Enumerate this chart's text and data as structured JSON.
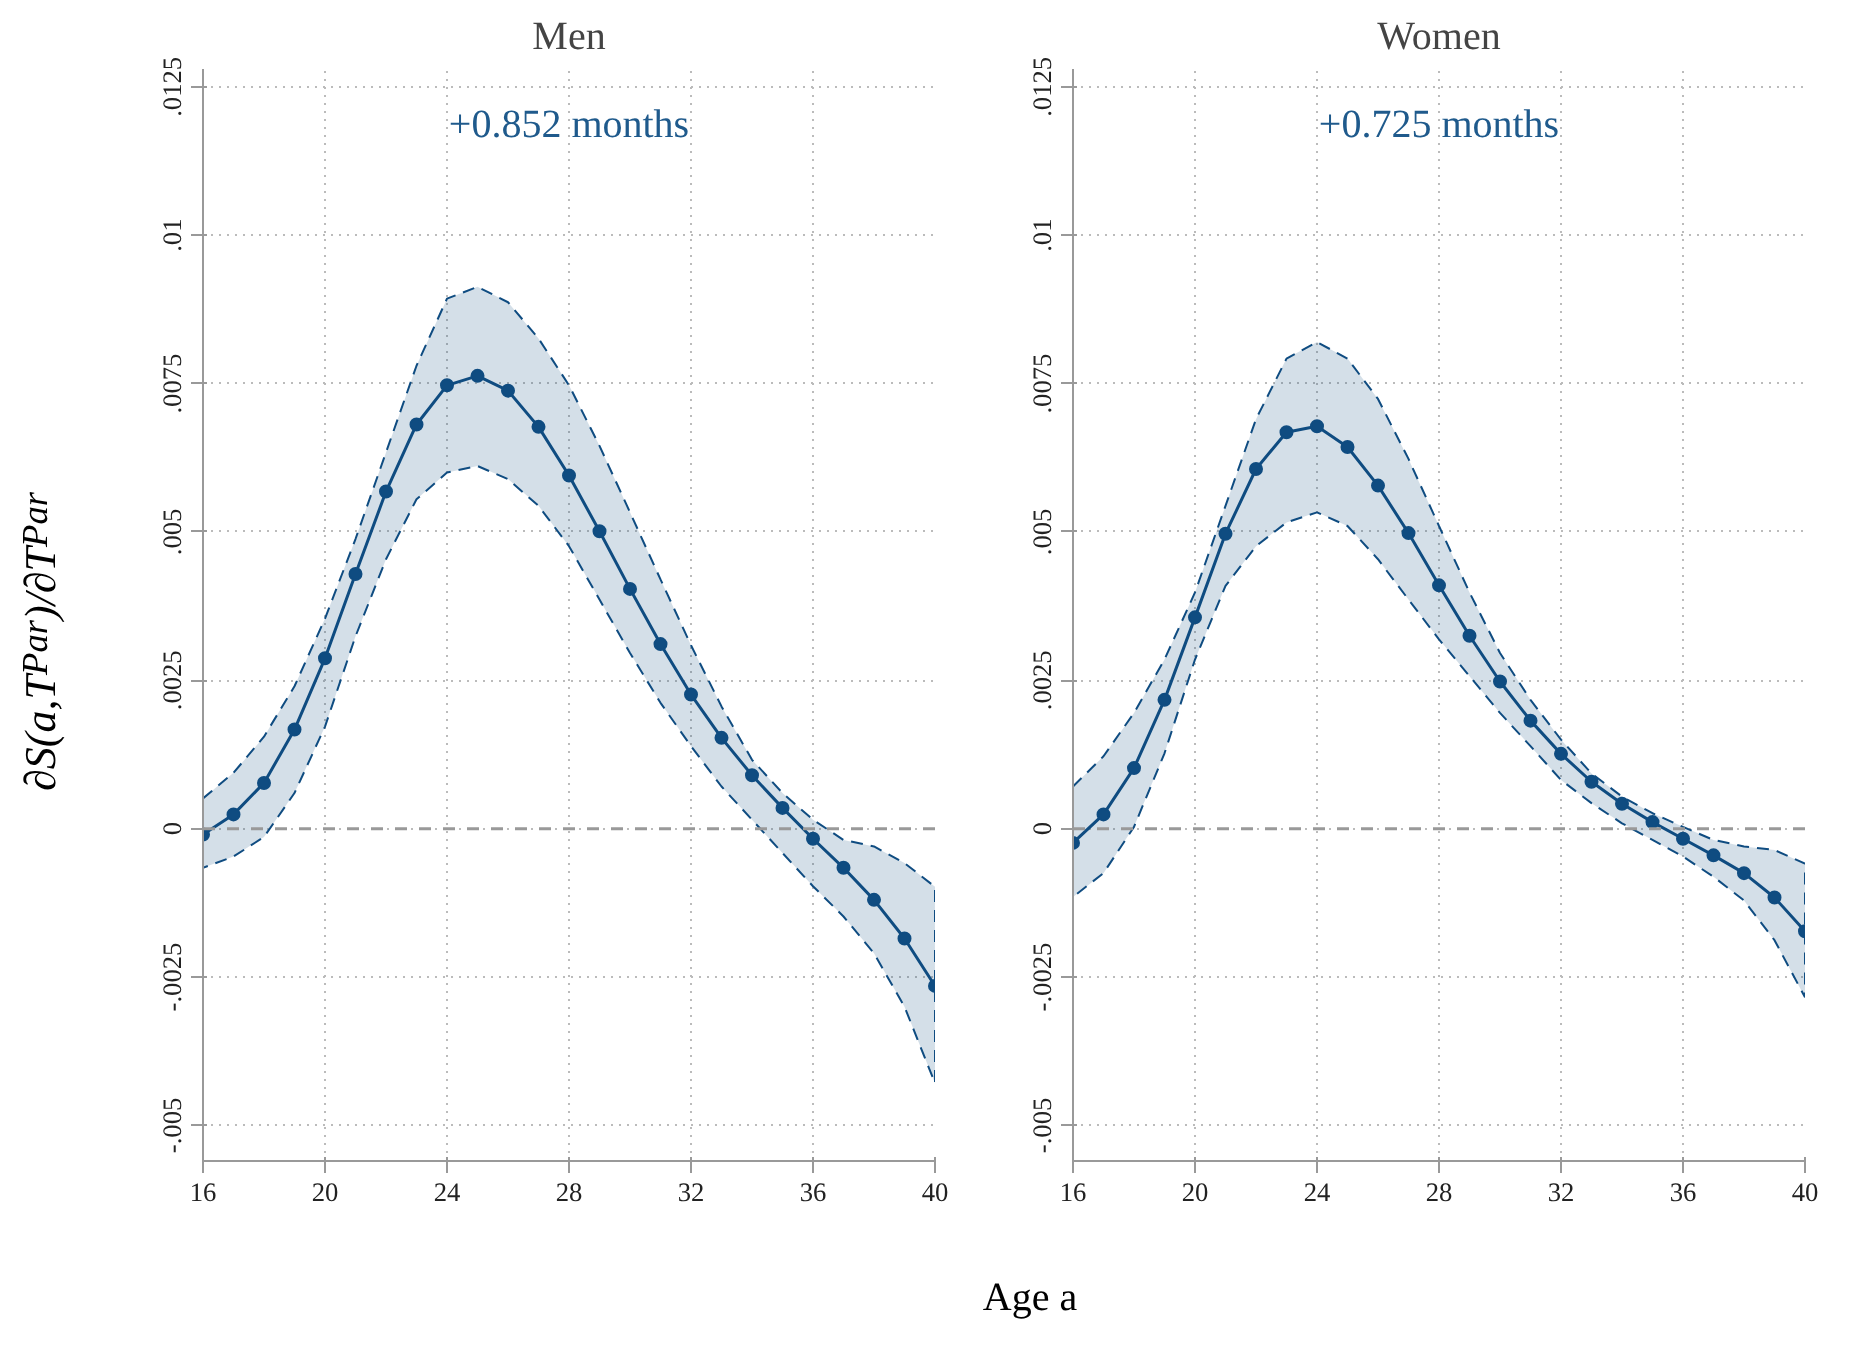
{
  "chart_data": [
    {
      "type": "line",
      "title": "Men",
      "ylabel": "∂S(a,T$_{Par}$)/∂T$_{Par}$",
      "xlabel": "Age a",
      "x": [
        16,
        17,
        18,
        19,
        20,
        21,
        22,
        23,
        24,
        25,
        26,
        27,
        28,
        29,
        30,
        31,
        32,
        33,
        34,
        35,
        36,
        37,
        38,
        39,
        40
      ],
      "series": [
        {
          "color": "#0f4c81",
          "values": [
            -0.0001,
            0.00024,
            0.00077,
            0.00167,
            0.00287,
            0.00429,
            0.00568,
            0.00681,
            0.00747,
            0.00763,
            0.00738,
            0.00677,
            0.00595,
            0.00501,
            0.00404,
            0.00311,
            0.00226,
            0.00153,
            0.0009,
            0.00035,
            -0.00017,
            -0.00066,
            -0.0012,
            -0.00185,
            -0.00265
          ],
          "upper": [
            0.00051,
            0.00094,
            0.00155,
            0.0024,
            0.00354,
            0.00488,
            0.00634,
            0.0078,
            0.00893,
            0.00913,
            0.00887,
            0.00826,
            0.00747,
            0.00645,
            0.00533,
            0.0042,
            0.00309,
            0.00206,
            0.00116,
            0.0006,
            0.00015,
            -0.00019,
            -0.0003,
            -0.00058,
            -0.00098
          ],
          "lower": [
            -0.00066,
            -0.00047,
            -0.00014,
            0.0006,
            0.00172,
            0.00324,
            0.00454,
            0.00555,
            0.006,
            0.00611,
            0.00589,
            0.00544,
            0.00476,
            0.00386,
            0.00296,
            0.00212,
            0.00139,
            0.00071,
            0.00015,
            -0.00041,
            -0.00097,
            -0.00148,
            -0.0021,
            -0.003,
            -0.00429
          ]
        }
      ],
      "annotations": [
        "+0.852 months"
      ],
      "xlim": [
        16,
        40
      ],
      "xticks": [
        16,
        20,
        24,
        28,
        32,
        36,
        40
      ],
      "ylim": [
        -0.0056,
        0.0128
      ],
      "yticks": [
        {
          "value": -0.005,
          "label": "-.005"
        },
        {
          "value": -0.0025,
          "label": "-.0025"
        },
        {
          "value": 0,
          "label": "0"
        },
        {
          "value": 0.0025,
          "label": ".0025"
        },
        {
          "value": 0.005,
          "label": ".005"
        },
        {
          "value": 0.0075,
          "label": ".0075"
        },
        {
          "value": 0.01,
          "label": ".01"
        },
        {
          "value": 0.0125,
          "label": ".0125"
        }
      ],
      "ref_lines": [
        {
          "axis": "y",
          "value": 0,
          "color": "#999999",
          "line_style": "dashed"
        }
      ],
      "grid": true,
      "marker": "circle",
      "line_style": "solid"
    },
    {
      "type": "line",
      "title": "Women",
      "x": [
        16,
        17,
        18,
        19,
        20,
        21,
        22,
        23,
        24,
        25,
        26,
        27,
        28,
        29,
        30,
        31,
        32,
        33,
        34,
        35,
        36,
        37,
        38,
        39,
        40
      ],
      "series": [
        {
          "color": "#0f4c81",
          "values": [
            -0.00024,
            0.00024,
            0.00102,
            0.00217,
            0.00356,
            0.00497,
            0.00606,
            0.00668,
            0.00678,
            0.00643,
            0.00578,
            0.00498,
            0.0041,
            0.00325,
            0.00248,
            0.00182,
            0.00126,
            0.00079,
            0.00042,
            0.00011,
            -0.00017,
            -0.00045,
            -0.00075,
            -0.00116,
            -0.00173
          ],
          "upper": [
            0.00071,
            0.00122,
            0.00195,
            0.00285,
            0.00398,
            0.00544,
            0.0069,
            0.00792,
            0.0082,
            0.00792,
            0.00724,
            0.00623,
            0.0051,
            0.00398,
            0.00296,
            0.00217,
            0.0015,
            0.00093,
            0.00054,
            0.00026,
            3e-05,
            -0.00019,
            -0.0003,
            -0.00036,
            -0.00059
          ],
          "lower": [
            -0.00115,
            -0.00075,
            3e-05,
            0.00127,
            0.00285,
            0.00409,
            0.00476,
            0.00516,
            0.00533,
            0.0051,
            0.00454,
            0.00386,
            0.00319,
            0.00257,
            0.00195,
            0.00139,
            0.00082,
            0.00043,
            9e-05,
            -0.00019,
            -0.00047,
            -0.00081,
            -0.00121,
            -0.00188,
            -0.00284
          ]
        }
      ],
      "annotations": [
        "+0.725 months"
      ],
      "xlim": [
        16,
        40
      ],
      "xticks": [
        16,
        20,
        24,
        28,
        32,
        36,
        40
      ],
      "ylim": [
        -0.0056,
        0.0128
      ],
      "yticks": [
        {
          "value": -0.005,
          "label": "-.005"
        },
        {
          "value": -0.0025,
          "label": "-.0025"
        },
        {
          "value": 0,
          "label": "0"
        },
        {
          "value": 0.0025,
          "label": ".0025"
        },
        {
          "value": 0.005,
          "label": ".005"
        },
        {
          "value": 0.0075,
          "label": ".0075"
        },
        {
          "value": 0.01,
          "label": ".01"
        },
        {
          "value": 0.0125,
          "label": ".0125"
        }
      ],
      "ref_lines": [
        {
          "axis": "y",
          "value": 0,
          "color": "#999999",
          "line_style": "dashed"
        }
      ],
      "grid": true,
      "marker": "circle",
      "line_style": "solid"
    }
  ]
}
